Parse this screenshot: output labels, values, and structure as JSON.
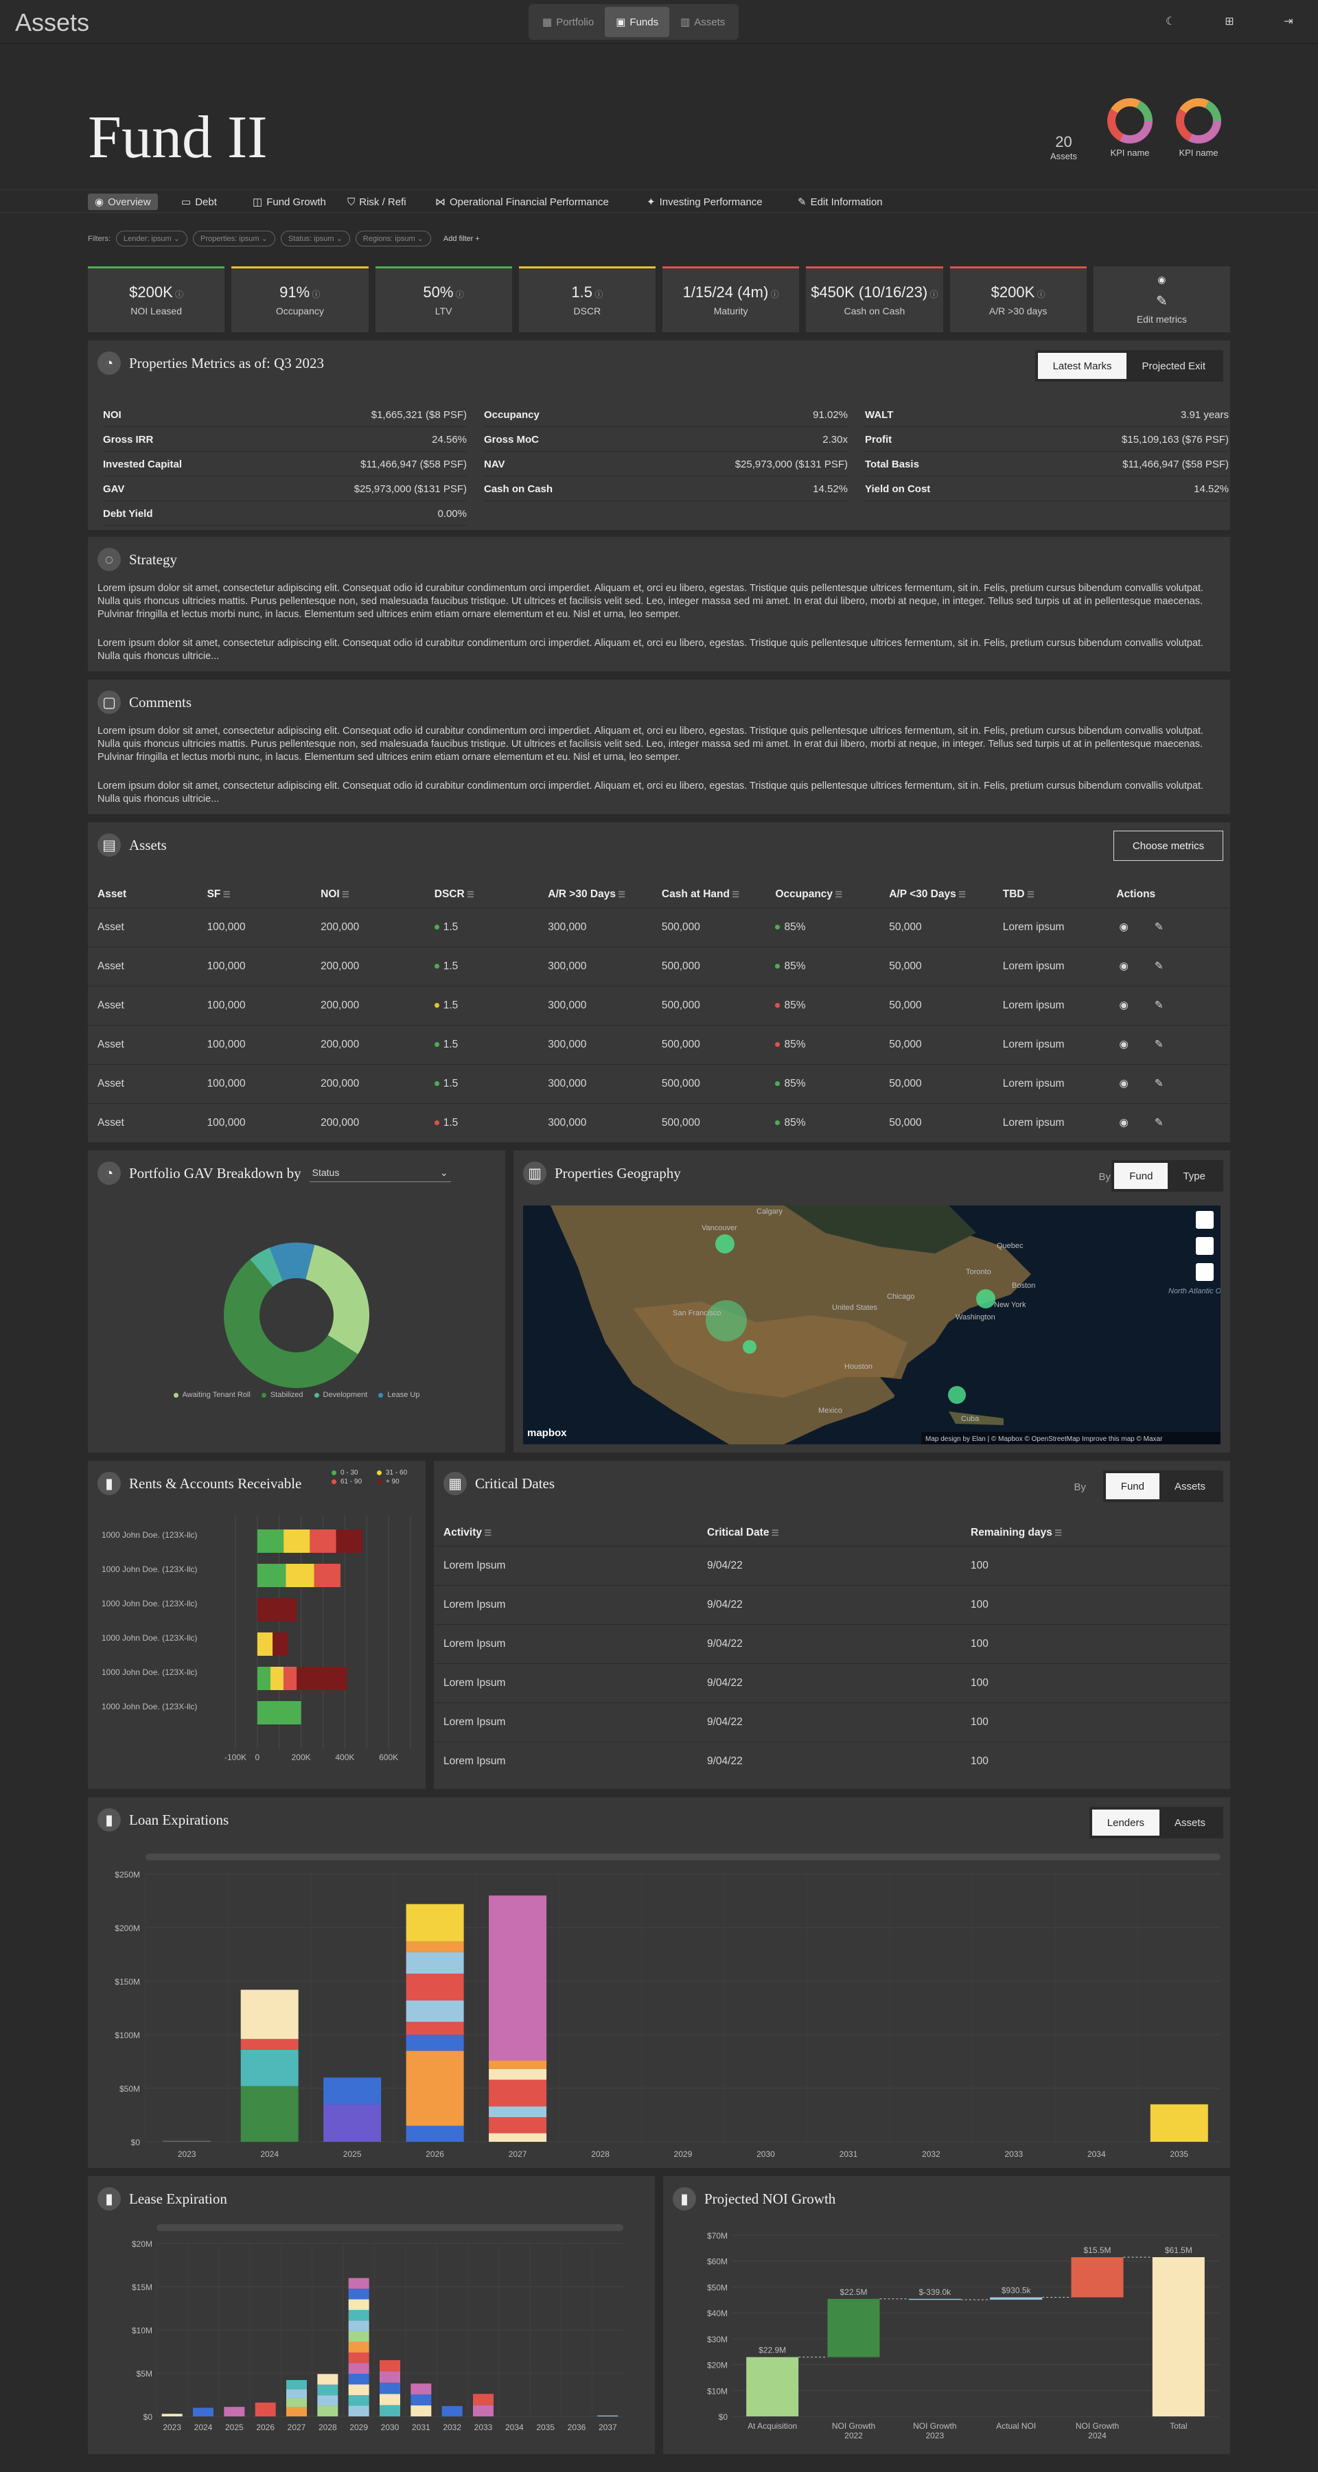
{
  "app": {
    "brand": "Assets"
  },
  "switcher": [
    {
      "label": "Portfolio"
    },
    {
      "label": "Funds"
    },
    {
      "label": "Assets"
    }
  ],
  "hero": {
    "title": "Fund II",
    "count": "20",
    "count_label": "Assets",
    "kpi1": "KPI name",
    "kpi2": "KPI name"
  },
  "tabs": [
    "Overview",
    "Debt",
    "Fund Growth",
    "Risk / Refi",
    "Operational Financial Performance",
    "Investing Performance",
    "Edit Information"
  ],
  "filters": {
    "label": "Filters:",
    "pills": [
      "Lender: ipsum",
      "Properties: ipsum",
      "Status: ipsum",
      "Regions: ipsum"
    ],
    "add": "Add filter"
  },
  "stats": [
    {
      "value": "$200K",
      "label": "NOI Leased",
      "color": "#4caf50"
    },
    {
      "value": "91%",
      "label": "Occupancy",
      "color": "#e6c22e"
    },
    {
      "value": "50%",
      "label": "LTV",
      "color": "#4caf50"
    },
    {
      "value": "1.5",
      "label": "DSCR",
      "color": "#e6c22e"
    },
    {
      "value": "1/15/24 (4m)",
      "label": "Maturity",
      "color": "#e0524a"
    },
    {
      "value": "$450K (10/16/23)",
      "label": "Cash on Cash",
      "color": "#e0524a"
    },
    {
      "value": "$200K",
      "label": "A/R >30 days",
      "color": "#e0524a"
    },
    {
      "value": "",
      "label": "Edit metrics",
      "color": "#3b3b3b"
    }
  ],
  "props": {
    "title": "Properties Metrics as of: Q3 2023",
    "seg": [
      "Latest Marks",
      "Projected Exit"
    ],
    "col1": [
      [
        "NOI",
        "$1,665,321 ($8 PSF)"
      ],
      [
        "Gross IRR",
        "24.56%"
      ],
      [
        "Invested Capital",
        "$11,466,947 ($58 PSF)"
      ],
      [
        "GAV",
        "$25,973,000 ($131 PSF)"
      ],
      [
        "Debt Yield",
        "0.00%"
      ]
    ],
    "col2": [
      [
        "Occupancy",
        "91.02%"
      ],
      [
        "Gross MoC",
        "2.30x"
      ],
      [
        "NAV",
        "$25,973,000 ($131 PSF)"
      ],
      [
        "Cash on Cash",
        "14.52%"
      ]
    ],
    "col3": [
      [
        "WALT",
        "3.91 years"
      ],
      [
        "Profit",
        "$15,109,163 ($76 PSF)"
      ],
      [
        "Total Basis",
        "$11,466,947 ($58 PSF)"
      ],
      [
        "Yield on Cost",
        "14.52%"
      ]
    ]
  },
  "strategy": {
    "title": "Strategy",
    "p1": "Lorem ipsum dolor sit amet, consectetur adipiscing elit. Consequat odio id curabitur condimentum orci imperdiet. Aliquam et, orci eu libero, egestas. Tristique quis pellentesque ultrices fermentum, sit in. Felis, pretium cursus bibendum convallis volutpat. Nulla quis rhoncus ultricies mattis. Purus pellentesque non, sed malesuada faucibus tristique. Ut ultrices et facilisis velit sed. Leo, integer massa sed mi amet. In erat dui libero, morbi at neque, in integer. Tellus sed turpis ut at in pellentesque maecenas. Pulvinar fringilla et lectus morbi nunc, in lacus. Elementum sed ultrices enim etiam ornare elementum et eu. Nisl et urna, leo semper.",
    "p2": "Lorem ipsum dolor sit amet, consectetur adipiscing elit. Consequat odio id curabitur condimentum orci imperdiet. Aliquam et, orci eu libero, egestas. Tristique quis pellentesque ultrices fermentum, sit in. Felis, pretium cursus bibendum convallis volutpat. Nulla quis rhoncus ultricie..."
  },
  "comments": {
    "title": "Comments",
    "p1": "Lorem ipsum dolor sit amet, consectetur adipiscing elit. Consequat odio id curabitur condimentum orci imperdiet. Aliquam et, orci eu libero, egestas. Tristique quis pellentesque ultrices fermentum, sit in. Felis, pretium cursus bibendum convallis volutpat. Nulla quis rhoncus ultricies mattis. Purus pellentesque non, sed malesuada faucibus tristique. Ut ultrices et facilisis velit sed. Leo, integer massa sed mi amet. In erat dui libero, morbi at neque, in integer. Tellus sed turpis ut at in pellentesque maecenas. Pulvinar fringilla et lectus morbi nunc, in lacus. Elementum sed ultrices enim etiam ornare elementum et eu. Nisl et urna, leo semper.",
    "p2": "Lorem ipsum dolor sit amet, consectetur adipiscing elit. Consequat odio id curabitur condimentum orci imperdiet. Aliquam et, orci eu libero, egestas. Tristique quis pellentesque ultrices fermentum, sit in. Felis, pretium cursus bibendum convallis volutpat. Nulla quis rhoncus ultricie..."
  },
  "assets": {
    "title": "Assets",
    "button": "Choose metrics",
    "columns": [
      "Asset",
      "SF",
      "NOI",
      "DSCR",
      "A/R >30 Days",
      "Cash at Hand",
      "Occupancy",
      "A/P <30 Days",
      "TBD",
      "Actions"
    ],
    "rows": [
      [
        "Asset",
        "100,000",
        "200,000",
        "1.5",
        "300,000",
        "500,000",
        "85%",
        "50,000",
        "Lorem ipsum",
        "#4caf50",
        "#4caf50"
      ],
      [
        "Asset",
        "100,000",
        "200,000",
        "1.5",
        "300,000",
        "500,000",
        "85%",
        "50,000",
        "Lorem ipsum",
        "#4caf50",
        "#4caf50"
      ],
      [
        "Asset",
        "100,000",
        "200,000",
        "1.5",
        "300,000",
        "500,000",
        "85%",
        "50,000",
        "Lorem ipsum",
        "#e6c22e",
        "#e0524a"
      ],
      [
        "Asset",
        "100,000",
        "200,000",
        "1.5",
        "300,000",
        "500,000",
        "85%",
        "50,000",
        "Lorem ipsum",
        "#4caf50",
        "#e0524a"
      ],
      [
        "Asset",
        "100,000",
        "200,000",
        "1.5",
        "300,000",
        "500,000",
        "85%",
        "50,000",
        "Lorem ipsum",
        "#4caf50",
        "#4caf50"
      ],
      [
        "Asset",
        "100,000",
        "200,000",
        "1.5",
        "300,000",
        "500,000",
        "85%",
        "50,000",
        "Lorem ipsum",
        "#e0524a",
        "#4caf50"
      ]
    ]
  },
  "gav": {
    "title": "Portfolio GAV Breakdown by",
    "select": "Status",
    "legend": [
      "Awaiting Tenant Roll",
      "Stabilized",
      "Development",
      "Lease Up"
    ]
  },
  "geo": {
    "title": "Properties Geography",
    "by": "By",
    "seg": [
      "Fund",
      "Type"
    ],
    "cities": [
      "Calgary",
      "Vancouver",
      "Quebec",
      "Toronto",
      "Boston",
      "New York",
      "Chicago",
      "United States",
      "Washington",
      "San Francisco",
      "Houston",
      "Mexico",
      "Cuba",
      "North Atlantic Ocean"
    ],
    "logo": "mapbox",
    "attrib": "Map design by Elan | © Mapbox © OpenStreetMap Improve this map © Maxar"
  },
  "rents": {
    "title": "Rents & Accounts Receivable",
    "legend": [
      "0 - 30",
      "31 - 60",
      "61 - 90",
      "+ 90"
    ]
  },
  "critical": {
    "title": "Critical Dates",
    "by": "By",
    "seg": [
      "Fund",
      "Assets"
    ],
    "columns": [
      "Activity",
      "Critical Date",
      "Remaining days"
    ],
    "rows": [
      [
        "Lorem Ipsum",
        "9/04/22",
        "100"
      ],
      [
        "Lorem Ipsum",
        "9/04/22",
        "100"
      ],
      [
        "Lorem Ipsum",
        "9/04/22",
        "100"
      ],
      [
        "Lorem Ipsum",
        "9/04/22",
        "100"
      ],
      [
        "Lorem Ipsum",
        "9/04/22",
        "100"
      ],
      [
        "Lorem Ipsum",
        "9/04/22",
        "100"
      ]
    ]
  },
  "loan": {
    "title": "Loan Expirations",
    "seg": [
      "Lenders",
      "Assets"
    ]
  },
  "lease": {
    "title": "Lease Expiration"
  },
  "noi": {
    "title": "Projected NOI Growth"
  },
  "chart_data": [
    {
      "type": "pie",
      "title": "Portfolio GAV Breakdown by",
      "categories": [
        "Awaiting Tenant Roll",
        "Stabilized",
        "Development",
        "Lease Up"
      ],
      "values": [
        30,
        55,
        5,
        10
      ],
      "colors": [
        "#a6d58a",
        "#3f8a45",
        "#4fb89a",
        "#3b8ab5"
      ]
    },
    {
      "type": "bar",
      "title": "Rents & Accounts Receivable",
      "categories": [
        "1000 John Doe. (123X-llc)",
        "1000 John Doe. (123X-llc)",
        "1000 John Doe. (123X-llc)",
        "1000 John Doe. (123X-llc)",
        "1000 John Doe. (123X-llc)",
        "1000 John Doe. (123X-llc)"
      ],
      "series": [
        {
          "name": "0 - 30",
          "values": [
            120000,
            130000,
            0,
            0,
            60000,
            200000
          ]
        },
        {
          "name": "31 - 60",
          "values": [
            120000,
            130000,
            0,
            70000,
            60000,
            0
          ]
        },
        {
          "name": "61 - 90",
          "values": [
            120000,
            120000,
            0,
            0,
            60000,
            0
          ]
        },
        {
          "name": "+ 90",
          "values": [
            120000,
            0,
            180000,
            70000,
            230000,
            0
          ]
        }
      ],
      "xticks": [
        "-100K",
        "0",
        "200K",
        "400K",
        "600K"
      ],
      "xlim": [
        -100000,
        700000
      ]
    },
    {
      "type": "bar",
      "title": "Loan Expirations",
      "categories": [
        "2023",
        "2024",
        "2025",
        "2026",
        "2027",
        "2028",
        "2029",
        "2030",
        "2031",
        "2032",
        "2033",
        "2034",
        "2035"
      ],
      "values": [
        1,
        142,
        60,
        222,
        230,
        0,
        0,
        0,
        0,
        0,
        0,
        0,
        35
      ],
      "yticks": [
        "$0",
        "$50M",
        "$100M",
        "$150M",
        "$200M",
        "$250M"
      ],
      "ylim": [
        0,
        250
      ]
    },
    {
      "type": "bar",
      "title": "Lease Expiration",
      "categories": [
        "2023",
        "2024",
        "2025",
        "2026",
        "2027",
        "2028",
        "2029",
        "2030",
        "2031",
        "2032",
        "2033",
        "2034",
        "2035",
        "2036",
        "2037"
      ],
      "values": [
        0.3,
        1,
        1.1,
        1.6,
        4.2,
        4.9,
        16,
        6.5,
        3.8,
        1.2,
        2.6,
        0,
        0,
        0,
        0.1
      ],
      "yticks": [
        "$0",
        "$5M",
        "$10M",
        "$15M",
        "$20M"
      ],
      "ylim": [
        0,
        20
      ]
    },
    {
      "type": "bar",
      "title": "Projected NOI Growth",
      "categories": [
        "At Acquisition",
        "NOI Growth 2022",
        "NOI Growth 2023",
        "Actual NOI",
        "NOI Growth 2024",
        "Total"
      ],
      "values": [
        22.9,
        22.5,
        -0.34,
        0.93,
        15.5,
        61.5
      ],
      "labels": [
        "$22.9M",
        "$22.5M",
        "$-339.0k",
        "$930.5k",
        "$15.5M",
        "$61.5M"
      ],
      "yticks": [
        "$0",
        "$10M",
        "$20M",
        "$30M",
        "$40M",
        "$50M",
        "$60M",
        "$70M"
      ],
      "ylim": [
        0,
        70
      ]
    }
  ]
}
